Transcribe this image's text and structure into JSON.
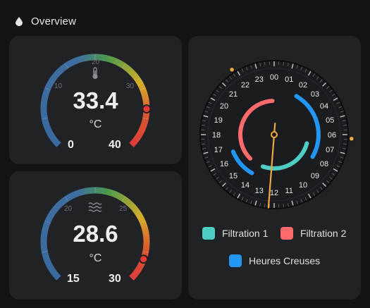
{
  "header": {
    "title": "Overview",
    "icon": "water-drop-icon"
  },
  "gauges": [
    {
      "id": "temperature",
      "icon": "thermometer-icon",
      "value": 33.4,
      "value_text": "33.4",
      "unit": "°C",
      "min": 0,
      "max": 40,
      "min_text": "0",
      "max_text": "40",
      "tick_labels": [
        "10",
        "20",
        "30"
      ]
    },
    {
      "id": "water",
      "icon": "water-waves-icon",
      "value": 28.6,
      "value_text": "28.6",
      "unit": "°C",
      "min": 15,
      "max": 30,
      "min_text": "15",
      "max_text": "30",
      "tick_labels": [
        "20",
        "25"
      ]
    }
  ],
  "clock": {
    "hours": [
      "00",
      "01",
      "02",
      "03",
      "04",
      "05",
      "06",
      "07",
      "08",
      "09",
      "10",
      "11",
      "12",
      "13",
      "14",
      "15",
      "16",
      "17",
      "18",
      "19",
      "20",
      "21",
      "22",
      "23"
    ],
    "hand_hour": 12.3,
    "sun_markers_hours": [
      21.8,
      6.2
    ],
    "ranges": [
      {
        "name": "Filtration 1",
        "color": "#4ecdc4",
        "start_hour": 7.0,
        "end_hour": 13.3
      },
      {
        "name": "Filtration 2",
        "color": "#ff6b6b",
        "start_hour": 15.0,
        "end_hour": 23.8
      },
      {
        "name": "Heures Creuses",
        "color": "#2196f3",
        "start_hour": 2.0,
        "end_hour": 8.0
      },
      {
        "name": "Heures Creuses",
        "color": "#2196f3",
        "start_hour": 14.0,
        "end_hour": 16.5
      }
    ]
  },
  "legend": [
    {
      "label": "Filtration 1",
      "color": "#4ecdc4"
    },
    {
      "label": "Filtration 2",
      "color": "#ff6b6b"
    },
    {
      "label": "Heures Creuses",
      "color": "#2196f3"
    }
  ]
}
